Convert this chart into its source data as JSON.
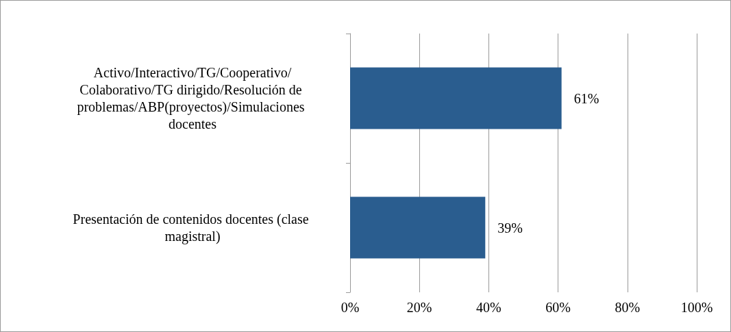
{
  "chart_data": {
    "type": "bar",
    "orientation": "horizontal",
    "categories": [
      "Activo/Interactivo/TG/Cooperativo/Colaborativo/TG dirigido/Resolución de problemas/ABP(proyectos)/Simulaciones docentes",
      "Presentación de contenidos docentes (clase magistral)"
    ],
    "values": [
      61,
      39
    ],
    "value_labels": [
      "61%",
      "39%"
    ],
    "color": "#2a5d8f",
    "xlim": [
      0,
      100
    ],
    "xticks": [
      {
        "value": 0,
        "label": "0%"
      },
      {
        "value": 20,
        "label": "20%"
      },
      {
        "value": 40,
        "label": "40%"
      },
      {
        "value": 60,
        "label": "60%"
      },
      {
        "value": 80,
        "label": "80%"
      },
      {
        "value": 100,
        "label": "100%"
      }
    ],
    "grid": "x"
  }
}
